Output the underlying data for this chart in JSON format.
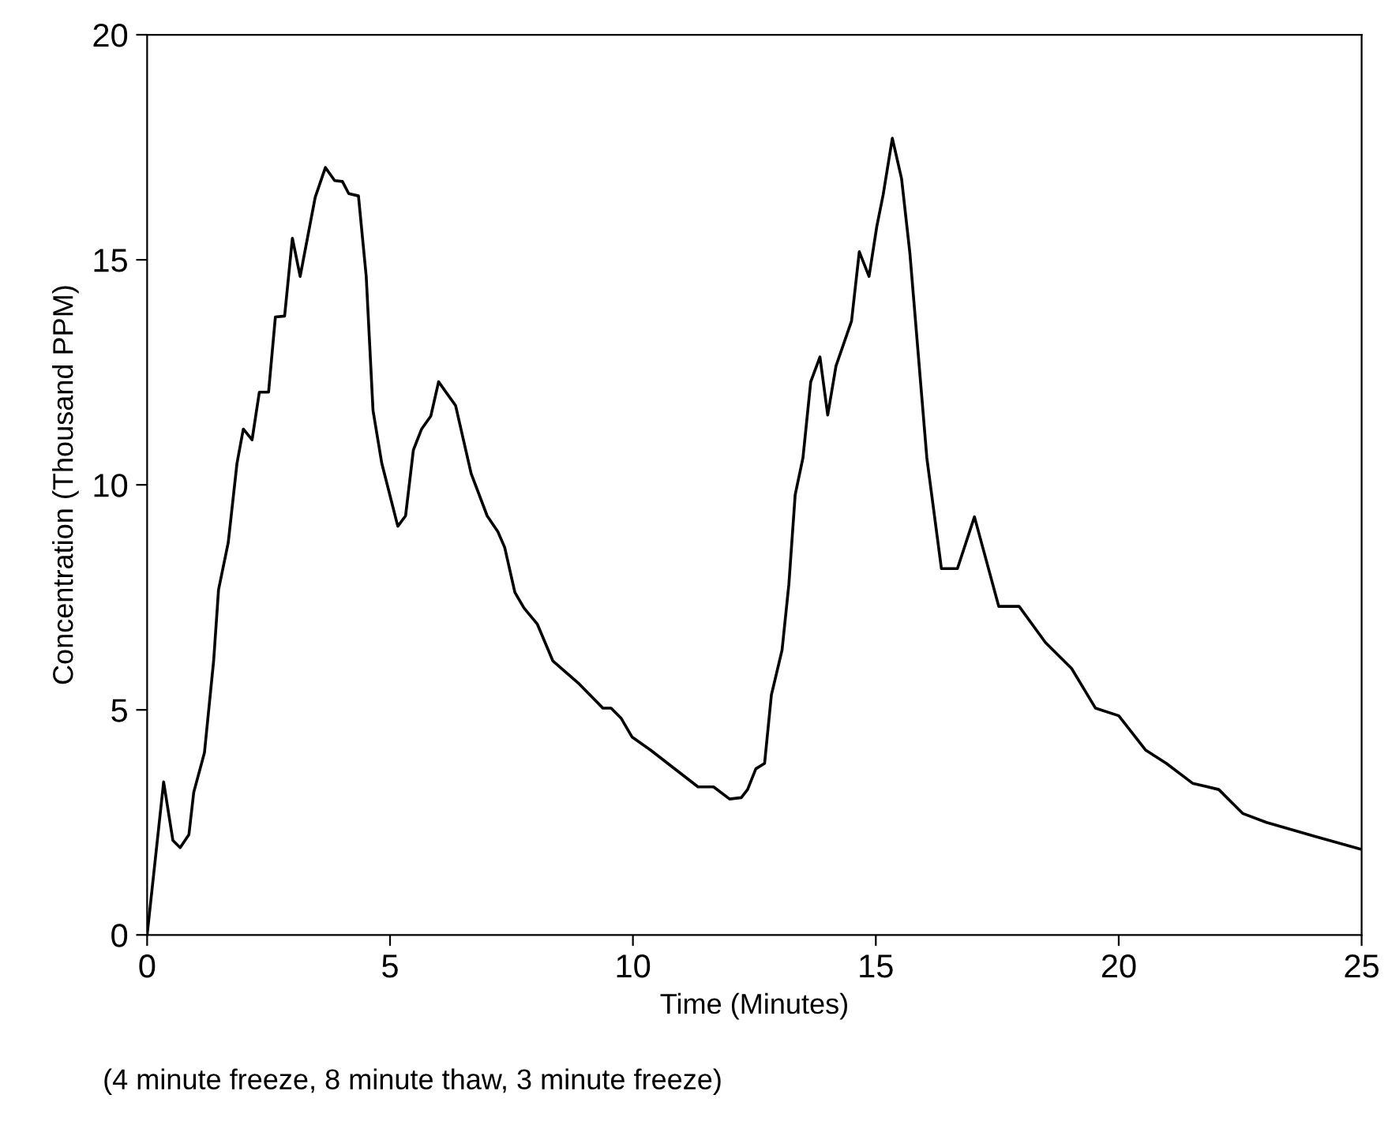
{
  "chart_data": {
    "type": "line",
    "xlabel": "Time (Minutes)",
    "ylabel": "Concentration (Thousand PPM)",
    "annotations": [
      "(4 minute freeze, 8 minute thaw, 3 minute freeze)"
    ],
    "xlim": [
      0,
      25
    ],
    "ylim": [
      0,
      20
    ],
    "xticks": [
      0,
      5,
      10,
      15,
      20,
      25
    ],
    "yticks": [
      0,
      5,
      10,
      15,
      20
    ],
    "grid": false,
    "legend": false,
    "marker": "none",
    "line_style": "solid",
    "series": [
      {
        "color": "#000000",
        "x": [
          0,
          0.34,
          0.53,
          0.68,
          0.86,
          0.96,
          1.18,
          1.37,
          1.47,
          1.67,
          1.85,
          1.98,
          2.16,
          2.31,
          2.5,
          2.64,
          2.83,
          2.99,
          3.15,
          3.46,
          3.67,
          3.86,
          4.02,
          4.15,
          4.35,
          4.51,
          4.65,
          4.83,
          5.16,
          5.32,
          5.48,
          5.65,
          5.84,
          6.0,
          6.35,
          6.67,
          7.0,
          7.22,
          7.36,
          7.57,
          7.76,
          8.03,
          8.35,
          8.9,
          9.38,
          9.55,
          9.76,
          9.98,
          10.36,
          11.34,
          11.66,
          11.99,
          12.23,
          12.36,
          12.53,
          12.71,
          12.85,
          13.07,
          13.21,
          13.34,
          13.5,
          13.66,
          13.85,
          14.01,
          14.18,
          14.5,
          14.66,
          14.86,
          15.02,
          15.15,
          15.34,
          15.53,
          15.7,
          16.05,
          16.35,
          16.68,
          17.03,
          17.53,
          17.95,
          18.49,
          19.03,
          19.52,
          20.0,
          20.55,
          20.98,
          21.52,
          22.06,
          22.55,
          23.04,
          24.07,
          25
        ],
        "values": [
          0,
          3.4,
          2.1,
          1.94,
          2.23,
          3.17,
          4.05,
          6.1,
          7.67,
          8.72,
          10.48,
          11.24,
          11.0,
          12.06,
          12.06,
          13.73,
          13.75,
          15.48,
          14.63,
          16.39,
          17.05,
          16.76,
          16.74,
          16.47,
          16.42,
          14.63,
          11.65,
          10.48,
          9.08,
          9.31,
          10.77,
          11.24,
          11.53,
          12.29,
          11.76,
          10.25,
          9.31,
          8.96,
          8.61,
          7.61,
          7.26,
          6.91,
          6.09,
          5.57,
          5.04,
          5.04,
          4.81,
          4.4,
          4.11,
          3.29,
          3.29,
          3.02,
          3.05,
          3.23,
          3.69,
          3.81,
          5.33,
          6.33,
          7.79,
          9.78,
          10.6,
          12.29,
          12.84,
          11.55,
          12.64,
          13.64,
          15.18,
          14.63,
          15.74,
          16.44,
          17.7,
          16.8,
          15.16,
          10.6,
          8.14,
          8.14,
          9.29,
          7.3,
          7.3,
          6.5,
          5.92,
          5.04,
          4.87,
          4.11,
          3.81,
          3.37,
          3.23,
          2.7,
          2.5,
          2.18,
          1.9
        ]
      }
    ]
  }
}
